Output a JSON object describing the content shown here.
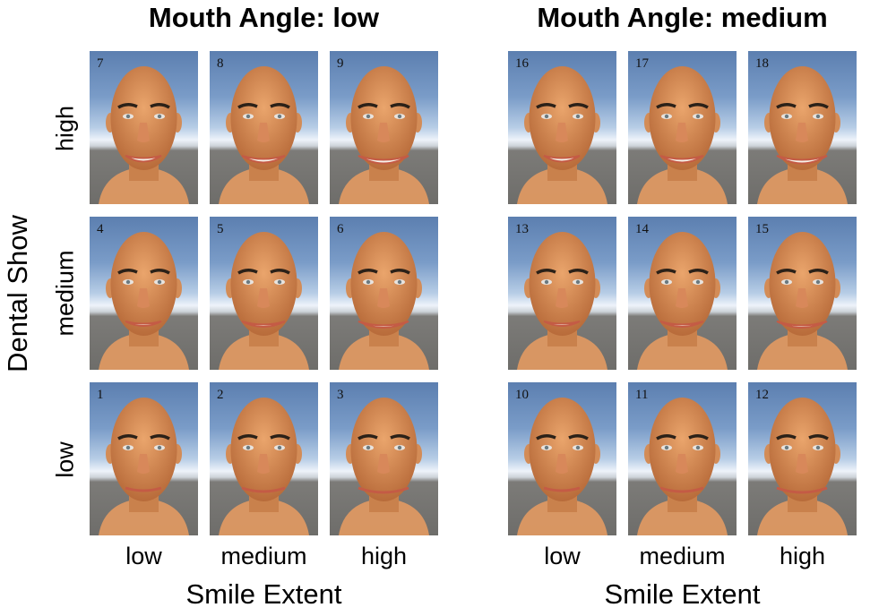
{
  "groups": [
    {
      "title": "Mouth Angle: low",
      "stimuli": [
        [
          7,
          8,
          9
        ],
        [
          4,
          5,
          6
        ],
        [
          1,
          2,
          3
        ]
      ]
    },
    {
      "title": "Mouth Angle: medium",
      "stimuli": [
        [
          16,
          17,
          18
        ],
        [
          13,
          14,
          15
        ],
        [
          10,
          11,
          12
        ]
      ]
    }
  ],
  "y_axis": {
    "label": "Dental Show",
    "rows": [
      "high",
      "medium",
      "low"
    ]
  },
  "x_axis": {
    "label": "Smile Extent",
    "columns": [
      "low",
      "medium",
      "high"
    ]
  },
  "colors": {
    "skin": "#e39a62",
    "sky": "#6f92c0",
    "ground": "#706f6c",
    "brows": "#2b2118"
  }
}
